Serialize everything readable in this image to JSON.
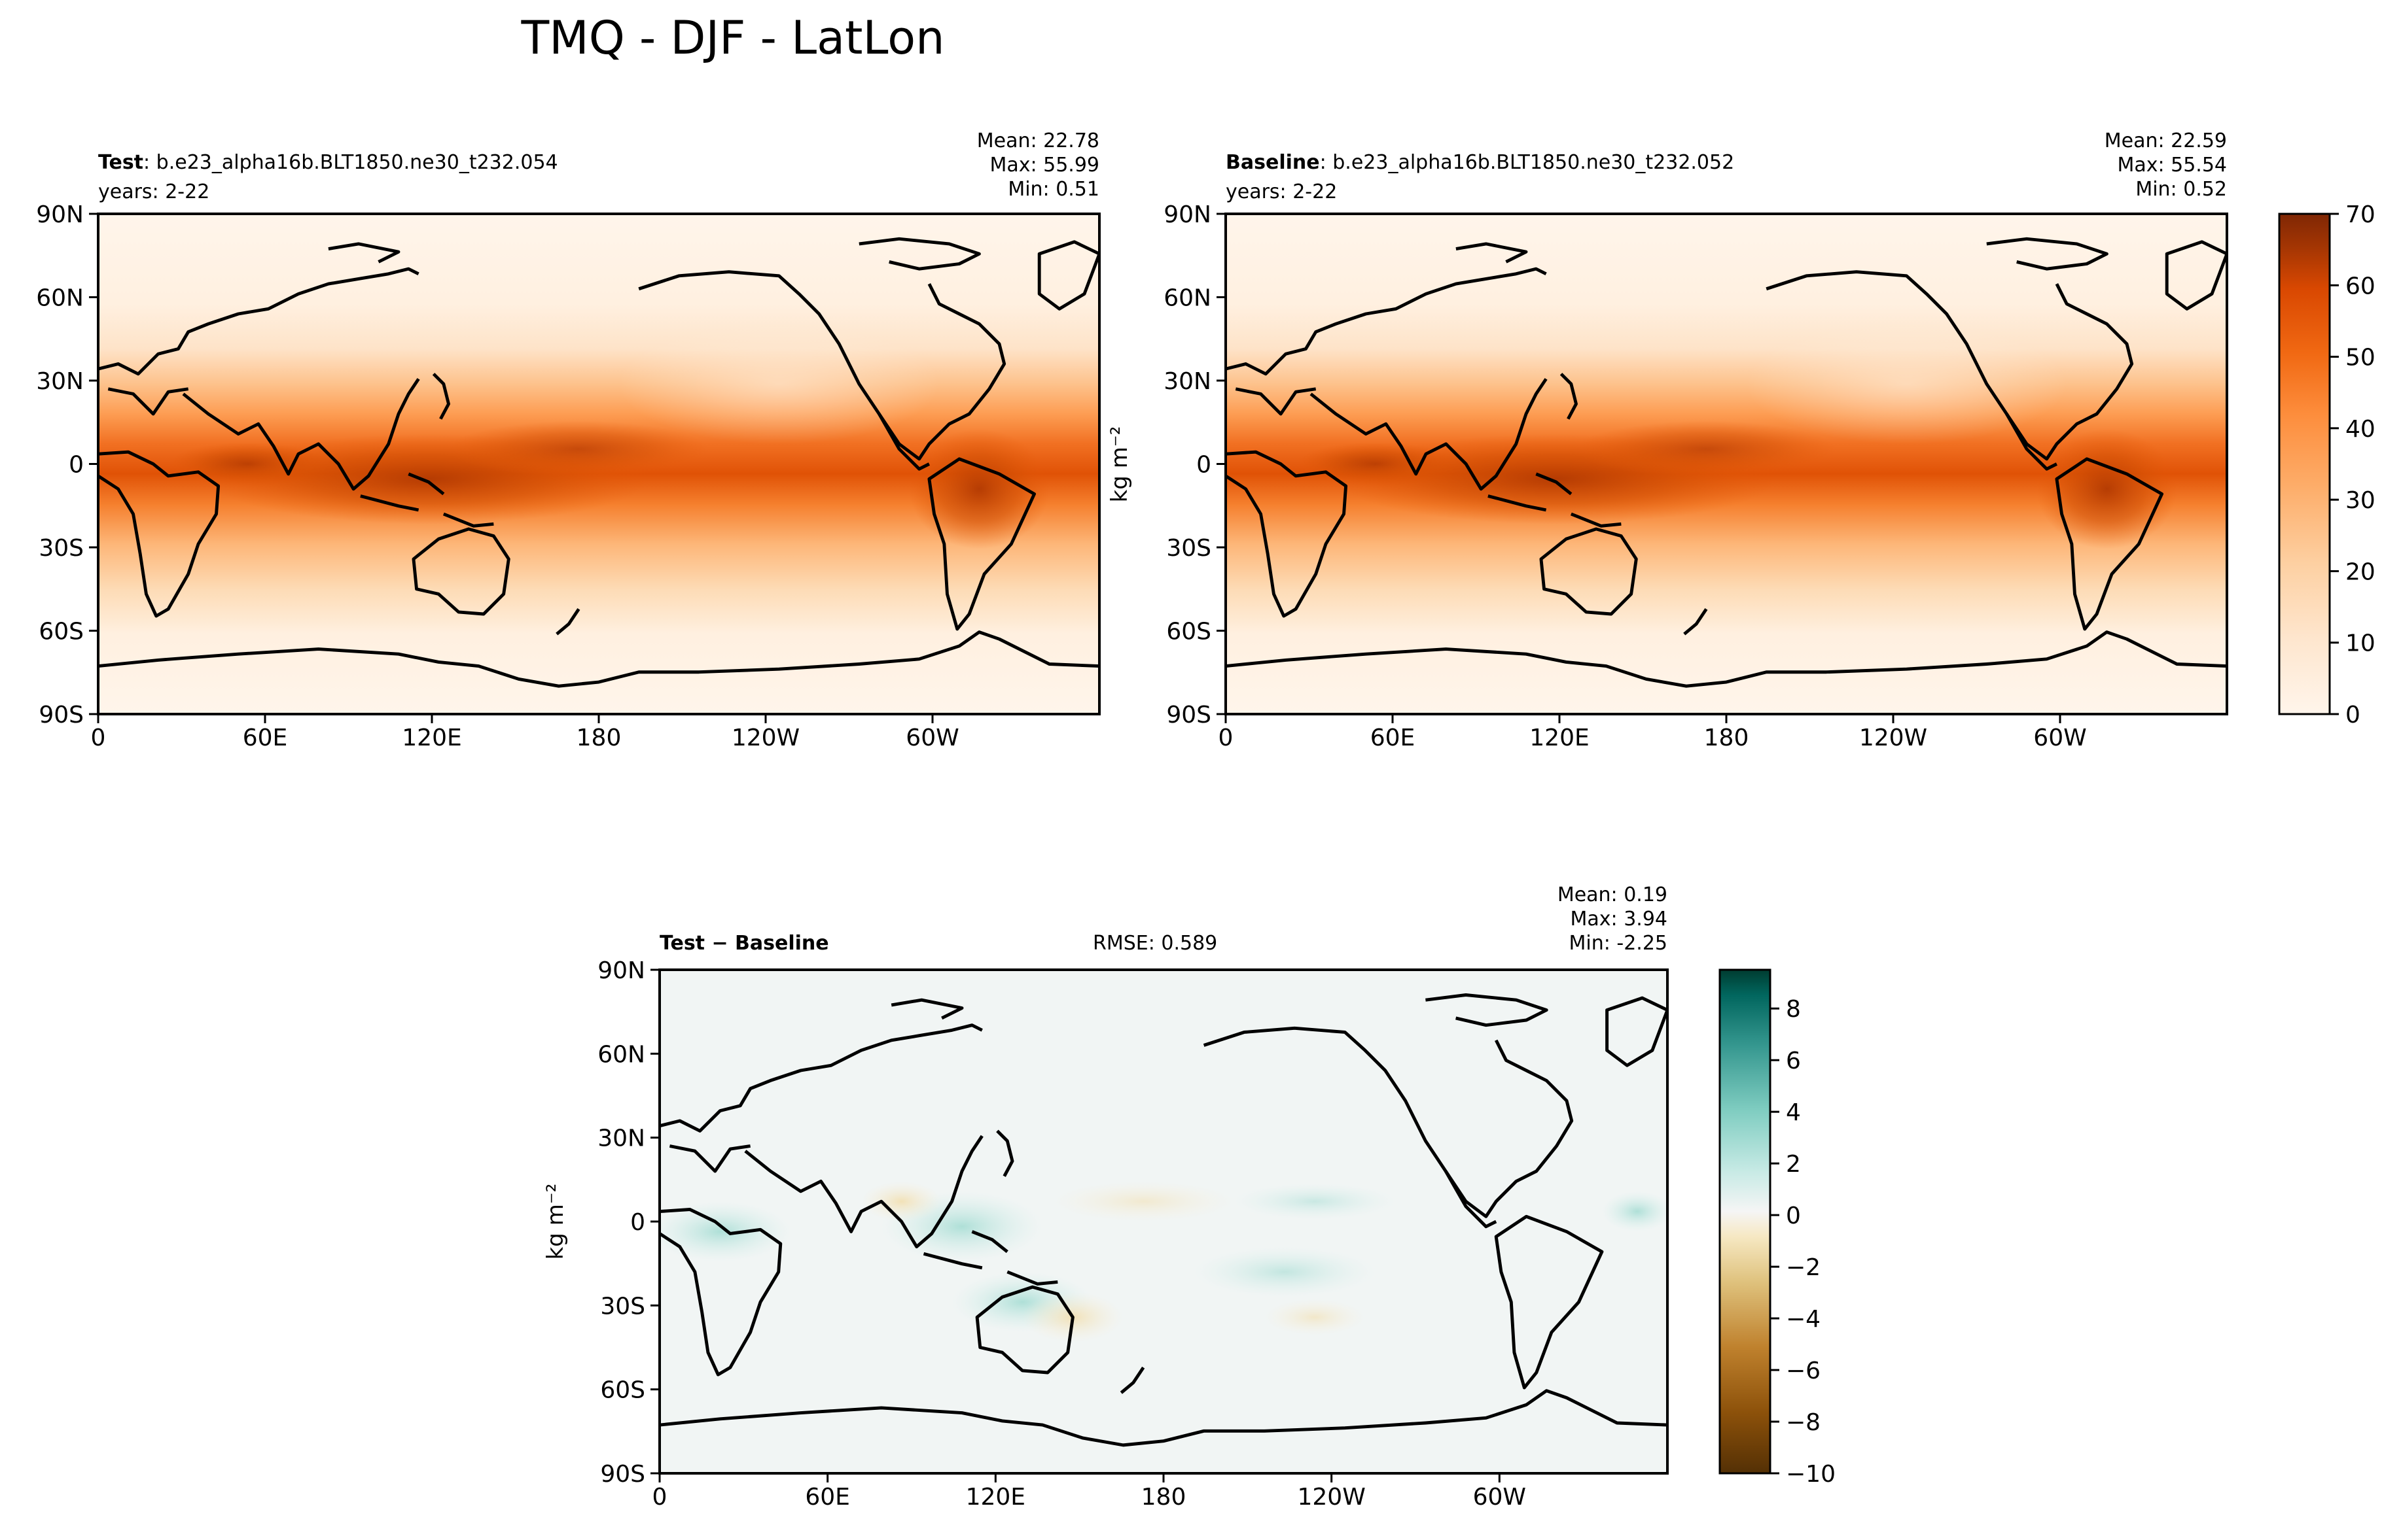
{
  "figure": {
    "title": "TMQ - DJF - LatLon"
  },
  "panels": {
    "test": {
      "label_bold": "Test",
      "label_rest": ": b.e23_alpha16b.BLT1850.ne30_t232.054",
      "years": "years: 2-22",
      "mean": "Mean: 22.78",
      "max": "Max: 55.99",
      "min": "Min:  0.51"
    },
    "baseline": {
      "label_bold": "Baseline",
      "label_rest": ": b.e23_alpha16b.BLT1850.ne30_t232.052",
      "years": "years: 2-22",
      "mean": "Mean: 22.59",
      "max": "Max: 55.54",
      "min": "Min:  0.52"
    },
    "diff": {
      "label": "Test − Baseline",
      "rmse": "RMSE: 0.589",
      "mean": "Mean:  0.19",
      "max": "Max:  3.94",
      "min": "Min: -2.25"
    }
  },
  "units_label": "kg m⁻²",
  "chart_data": [
    {
      "type": "heatmap",
      "name": "test",
      "projection": "PlateCarree lat-lon map with coastlines",
      "colormap": "Oranges",
      "xlim": [
        0,
        360
      ],
      "ylim": [
        -90,
        90
      ],
      "x_ticks": [
        "0",
        "60E",
        "120E",
        "180",
        "120W",
        "60W"
      ],
      "y_ticks": [
        "90N",
        "60N",
        "30N",
        "0",
        "30S",
        "60S",
        "90S"
      ],
      "statistics": {
        "mean": 22.78,
        "max": 55.99,
        "min": 0.51
      }
    },
    {
      "type": "heatmap",
      "name": "baseline",
      "projection": "PlateCarree lat-lon map with coastlines",
      "colormap": "Oranges",
      "xlim": [
        0,
        360
      ],
      "ylim": [
        -90,
        90
      ],
      "x_ticks": [
        "0",
        "60E",
        "120E",
        "180",
        "120W",
        "60W"
      ],
      "y_ticks": [
        "90N",
        "60N",
        "30N",
        "0",
        "30S",
        "60S",
        "90S"
      ],
      "statistics": {
        "mean": 22.59,
        "max": 55.54,
        "min": 0.52
      },
      "colorbar": {
        "range": [
          0,
          70
        ],
        "ticks": [
          "70",
          "60",
          "50",
          "40",
          "30",
          "20",
          "10",
          "0"
        ],
        "label": "kg m⁻²"
      }
    },
    {
      "type": "heatmap",
      "name": "difference",
      "projection": "PlateCarree lat-lon map with coastlines",
      "colormap": "BrBG",
      "xlim": [
        0,
        360
      ],
      "ylim": [
        -90,
        90
      ],
      "x_ticks": [
        "0",
        "60E",
        "120E",
        "180",
        "120W",
        "60W"
      ],
      "y_ticks": [
        "90N",
        "60N",
        "30N",
        "0",
        "30S",
        "60S",
        "90S"
      ],
      "statistics": {
        "mean": 0.19,
        "max": 3.94,
        "min": -2.25,
        "rmse": 0.589
      },
      "colorbar": {
        "range": [
          -10,
          9.5
        ],
        "ticks": [
          "8",
          "6",
          "4",
          "2",
          "0",
          "−2",
          "−4",
          "−6",
          "−8",
          "−10"
        ],
        "label": "kg m⁻²"
      }
    }
  ]
}
